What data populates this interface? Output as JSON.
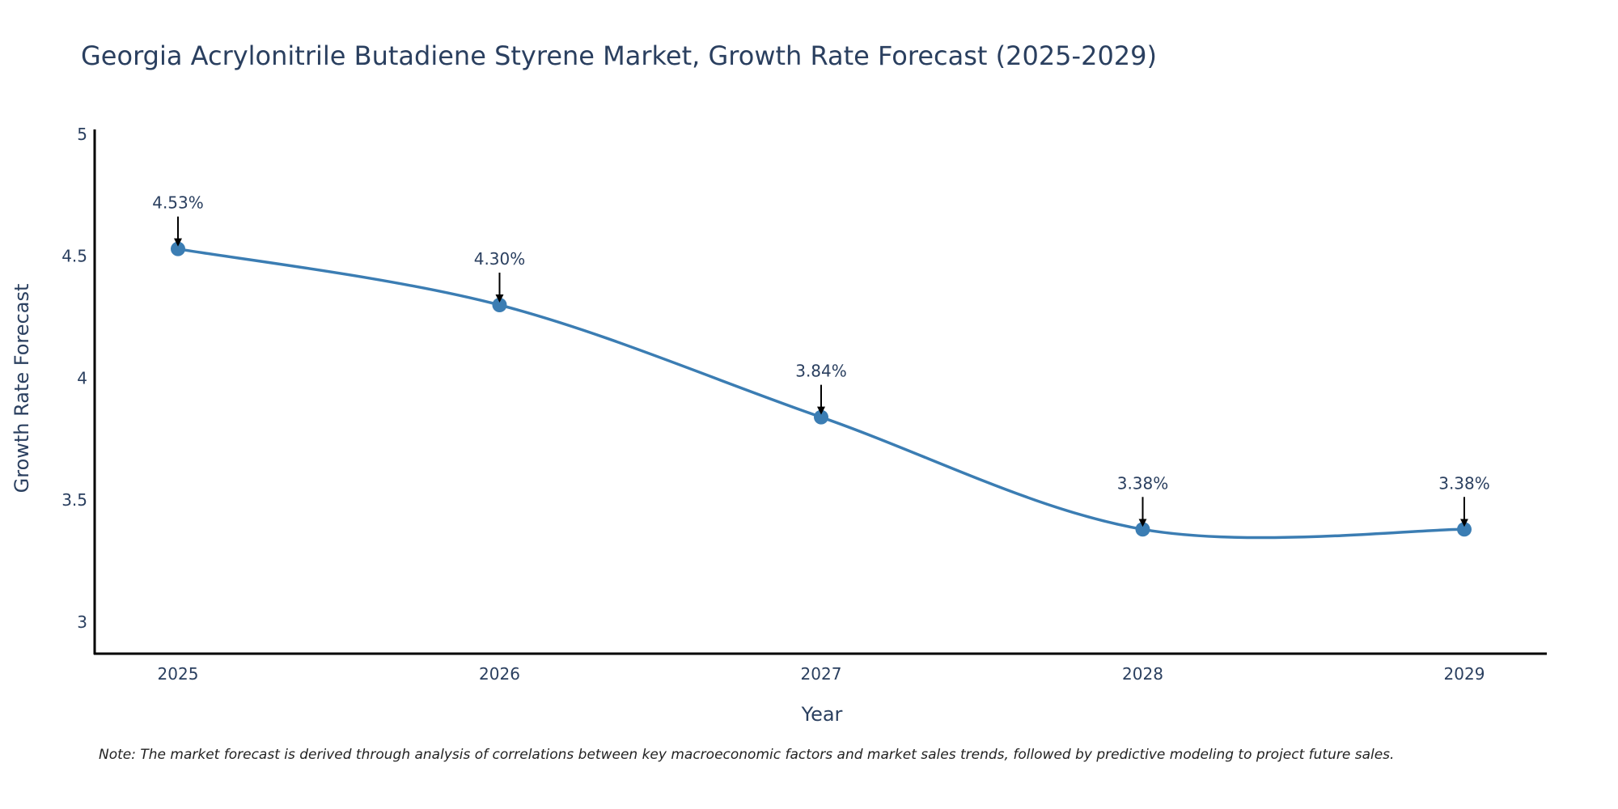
{
  "chart_data": {
    "type": "line",
    "title": "Georgia Acrylonitrile Butadiene Styrene Market, Growth Rate Forecast (2025-2029)",
    "xlabel": "Year",
    "ylabel": "Growth Rate Forecast",
    "categories": [
      "2025",
      "2026",
      "2027",
      "2028",
      "2029"
    ],
    "series": [
      {
        "name": "Growth Rate Forecast",
        "values": [
          4.53,
          4.3,
          3.84,
          3.38,
          3.38
        ],
        "labels": [
          "4.53%",
          "4.30%",
          "3.84%",
          "3.38%",
          "3.38%"
        ]
      }
    ],
    "ylim": [
      2.87,
      5.02
    ],
    "yticks": [
      3,
      3.5,
      4,
      4.5,
      5
    ],
    "ytick_labels": [
      "3",
      "3.5",
      "4",
      "4.5",
      "5"
    ],
    "grid": false,
    "line_shape": "spline",
    "colors": {
      "line": "#3b7db3",
      "marker": "#3b7db3",
      "axis": "#000000",
      "text": "#2a3f5f",
      "arrow": "#000000"
    },
    "note": "Note: The market forecast is derived through analysis of correlations between key macroeconomic factors and market sales trends, followed by predictive modeling to project future sales."
  }
}
